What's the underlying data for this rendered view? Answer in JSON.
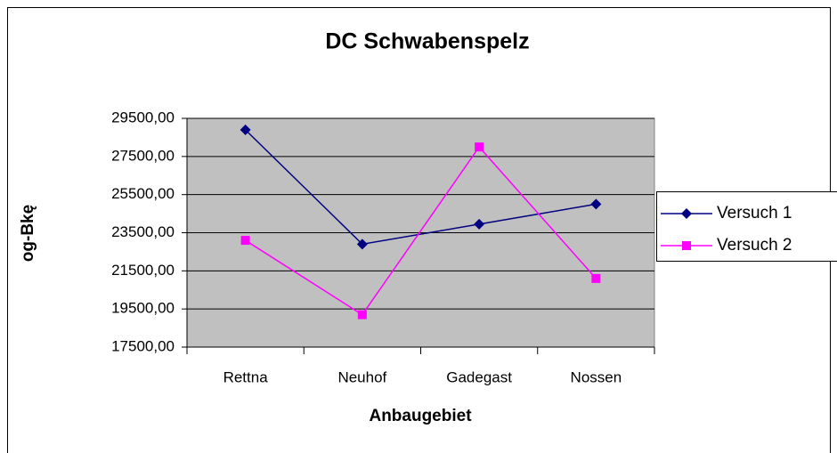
{
  "chart_data": {
    "type": "line",
    "title": "DC Schwabenspelz",
    "x_label": "Anbaugebiet",
    "y_label": "og-Bkę",
    "categories": [
      "Rettna",
      "Neuhof",
      "Gadegast",
      "Nossen"
    ],
    "series": [
      {
        "name": "Versuch 1",
        "color": "#000080",
        "marker": "diamond",
        "values": [
          28900,
          22900,
          23950,
          25000
        ]
      },
      {
        "name": "Versuch 2",
        "color": "#ff00ff",
        "marker": "square",
        "values": [
          23100,
          19200,
          28000,
          21100
        ]
      }
    ],
    "ylim": [
      17500,
      29500
    ],
    "yticks": [
      {
        "value": 17500,
        "label": "17500,00"
      },
      {
        "value": 19500,
        "label": "19500,00"
      },
      {
        "value": 21500,
        "label": "21500,00"
      },
      {
        "value": 23500,
        "label": "23500,00"
      },
      {
        "value": 25500,
        "label": "25500,00"
      },
      {
        "value": 27500,
        "label": "27500,00"
      },
      {
        "value": 29500,
        "label": "29500,00"
      }
    ],
    "grid": true,
    "legend": "right",
    "plot_background": "#c0c0c0"
  }
}
